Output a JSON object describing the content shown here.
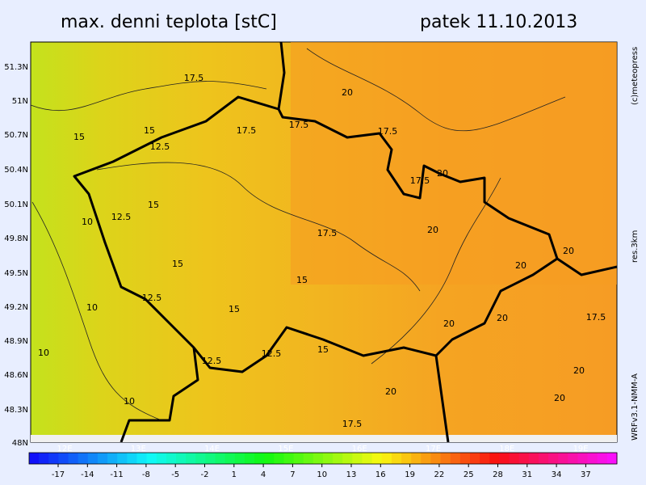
{
  "header": {
    "title": "max. denni teplota [stC]",
    "date": "patek 11.10.2013"
  },
  "map": {
    "lat_labels": [
      "51.3N",
      "51N",
      "50.7N",
      "50.4N",
      "50.1N",
      "49.8N",
      "49.5N",
      "49.2N",
      "48.9N",
      "48.6N",
      "48.3N",
      "48N"
    ],
    "lon_labels": [
      "12E",
      "13E",
      "14E",
      "15E",
      "16E",
      "17E",
      "18E",
      "19E"
    ],
    "contour_labels": [
      17.5,
      20,
      15,
      17.5,
      17.5,
      17.5,
      15,
      12.5,
      20,
      17.5,
      15,
      12.5,
      10,
      17.5,
      20,
      15,
      15,
      20,
      20,
      12.5,
      10,
      15,
      20,
      20,
      17.5,
      10,
      12.5,
      12.5,
      15,
      20,
      20,
      10,
      17.5,
      20
    ]
  },
  "colorbar": {
    "ticks": [
      -17,
      -14,
      -11,
      -8,
      -5,
      -2,
      1,
      4,
      7,
      10,
      13,
      16,
      19,
      22,
      25,
      28,
      31,
      34,
      37
    ]
  },
  "side": {
    "copyright": "(c)meteopress",
    "resolution": "res.3km",
    "model": "WRFv3.1-NMM-A"
  }
}
